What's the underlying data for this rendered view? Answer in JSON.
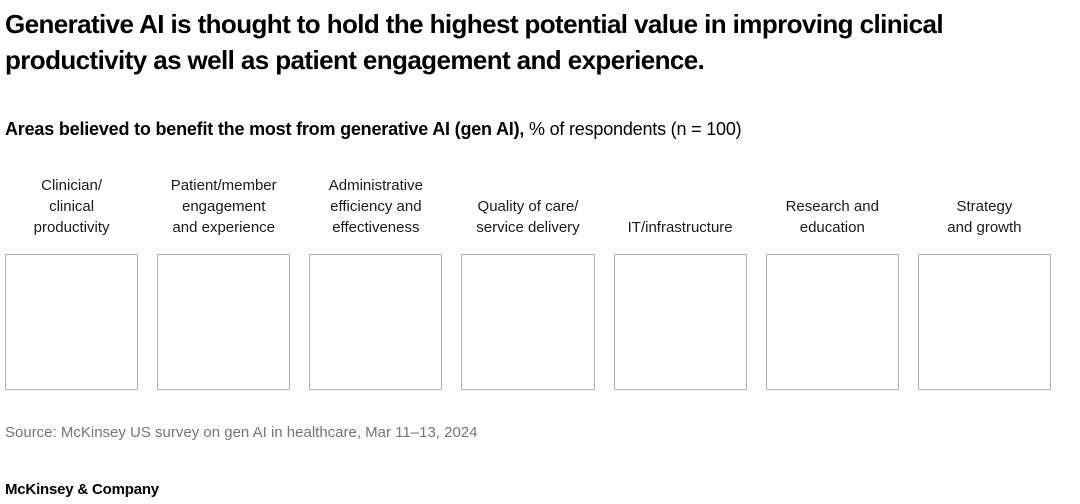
{
  "header": {
    "title": "Generative AI is thought to hold the highest potential value in improving clinical productivity as well as patient engagement and experience."
  },
  "subtitle": {
    "bold": "Areas believed to benefit the most from generative AI (gen AI),",
    "regular": " % of respondents (n = 100)"
  },
  "columns": [
    {
      "label": "Clinician/\nclinical\nproductivity"
    },
    {
      "label": "Patient/member\nengagement\nand experience"
    },
    {
      "label": "Administrative\nefficiency and\neffectiveness"
    },
    {
      "label": "Quality of care/\nservice delivery"
    },
    {
      "label": "IT/infrastructure"
    },
    {
      "label": "Research and\neducation"
    },
    {
      "label": "Strategy\nand growth"
    }
  ],
  "chart_data": {
    "type": "bar",
    "title": "Areas believed to benefit the most from generative AI (gen AI), % of respondents (n = 100)",
    "categories": [
      "Clinician/clinical productivity",
      "Patient/member engagement and experience",
      "Administrative efficiency and effectiveness",
      "Quality of care/service delivery",
      "IT/infrastructure",
      "Research and education",
      "Strategy and growth"
    ],
    "values": [],
    "ylabel": "% of respondents",
    "n": 100,
    "legend_position": "none",
    "grid": false
  },
  "source": "Source: McKinsey US survey on gen AI in healthcare, Mar 11–13, 2024",
  "footer": {
    "wordmark": "McKinsey & Company"
  },
  "colors": {
    "box_border": "#b0b0b0",
    "source_text": "#757575",
    "text": "#000000",
    "background": "#ffffff"
  }
}
